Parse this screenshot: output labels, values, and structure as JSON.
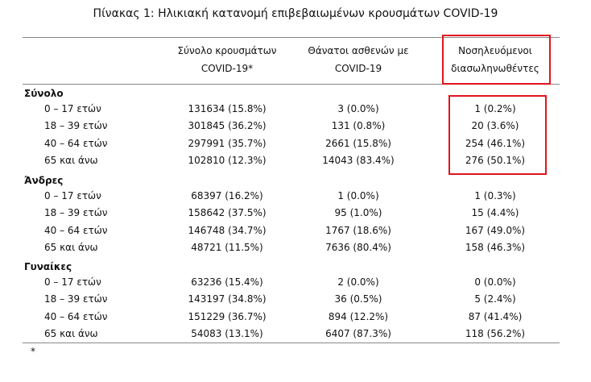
{
  "title": "Πίνακας 1: Ηλικιακή κατανομή επιβεβαιωμένων κρουσμάτων COVID-19",
  "table": {
    "headers": [
      [
        "Σύνολο κρουσμάτων",
        "COVID-19*"
      ],
      [
        "Θάνατοι ασθενών με",
        "COVID-19"
      ],
      [
        "Νοσηλευόμενοι",
        "διασωληνωθέντες"
      ]
    ],
    "sections": [
      {
        "label": "Σύνολο",
        "rows": [
          [
            "0 – 17 ετών",
            "131634 (15.8%)",
            "3 (0.0%)",
            "1 (0.2%)"
          ],
          [
            "18 – 39 ετών",
            "301845 (36.2%)",
            "131 (0.8%)",
            "20 (3.6%)"
          ],
          [
            "40 – 64 ετών",
            "297991 (35.7%)",
            "2661 (15.8%)",
            "254 (46.1%)"
          ],
          [
            "65 και άνω",
            "102810 (12.3%)",
            "14043 (83.4%)",
            "276 (50.1%)"
          ]
        ]
      },
      {
        "label": "Άνδρες",
        "rows": [
          [
            "0 – 17 ετών",
            "68397 (16.2%)",
            "1 (0.0%)",
            "1 (0.3%)"
          ],
          [
            "18 – 39 ετών",
            "158642 (37.5%)",
            "95 (1.0%)",
            "15 (4.4%)"
          ],
          [
            "40 – 64 ετών",
            "146748 (34.7%)",
            "1767 (18.6%)",
            "167 (49.0%)"
          ],
          [
            "65 και άνω",
            "48721 (11.5%)",
            "7636 (80.4%)",
            "158 (46.3%)"
          ]
        ]
      },
      {
        "label": "Γυναίκες",
        "rows": [
          [
            "0 – 17 ετών",
            "63236 (15.4%)",
            "2 (0.0%)",
            "0 (0.0%)"
          ],
          [
            "18 – 39 ετών",
            "143197 (34.8%)",
            "36 (0.5%)",
            "5 (2.4%)"
          ],
          [
            "40 – 64 ετών",
            "151229 (36.7%)",
            "894 (12.2%)",
            "87 (41.4%)"
          ],
          [
            "65 και άνω",
            "54083 (13.1%)",
            "6407 (87.3%)",
            "118 (56.2%)"
          ]
        ]
      }
    ],
    "footnote": "*"
  }
}
